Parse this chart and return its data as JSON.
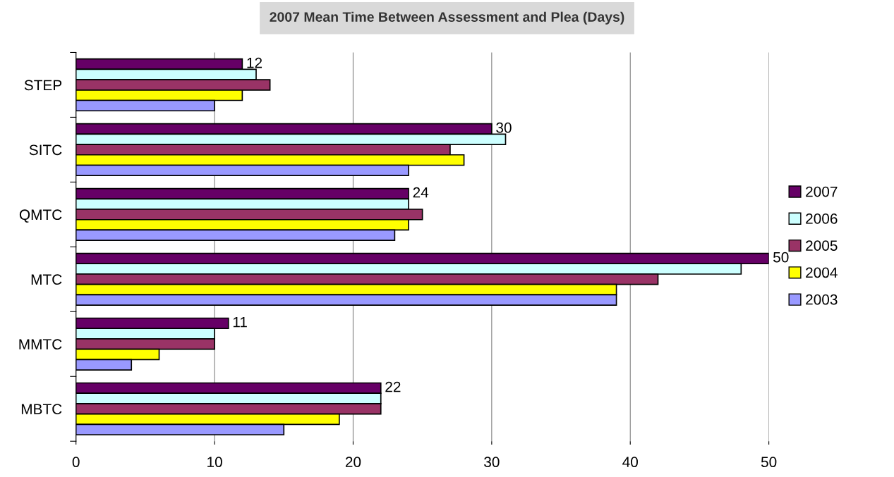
{
  "chart_data": {
    "type": "bar",
    "orientation": "horizontal",
    "title": "2007 Mean Time Between Assessment and Plea (Days)",
    "categories": [
      "STEP",
      "SITC",
      "QMTC",
      "MTC",
      "MMTC",
      "MBTC"
    ],
    "series": [
      {
        "name": "2007",
        "color": "#660066",
        "values": [
          12,
          30,
          24,
          50,
          11,
          22
        ],
        "value_labels": [
          "12",
          "30",
          "24",
          "50",
          "11",
          "22"
        ]
      },
      {
        "name": "2006",
        "color": "#ccffff",
        "values": [
          13,
          31,
          24,
          48,
          10,
          22
        ]
      },
      {
        "name": "2005",
        "color": "#993366",
        "values": [
          14,
          27,
          25,
          42,
          10,
          22
        ]
      },
      {
        "name": "2004",
        "color": "#ffff00",
        "values": [
          12,
          28,
          24,
          39,
          6,
          19
        ]
      },
      {
        "name": "2003",
        "color": "#9999ff",
        "values": [
          10,
          24,
          23,
          39,
          4,
          15
        ]
      }
    ],
    "xlim": [
      0,
      50
    ],
    "xticks": [
      0,
      10,
      20,
      30,
      40,
      50
    ],
    "grid": "x",
    "legend": "right"
  }
}
